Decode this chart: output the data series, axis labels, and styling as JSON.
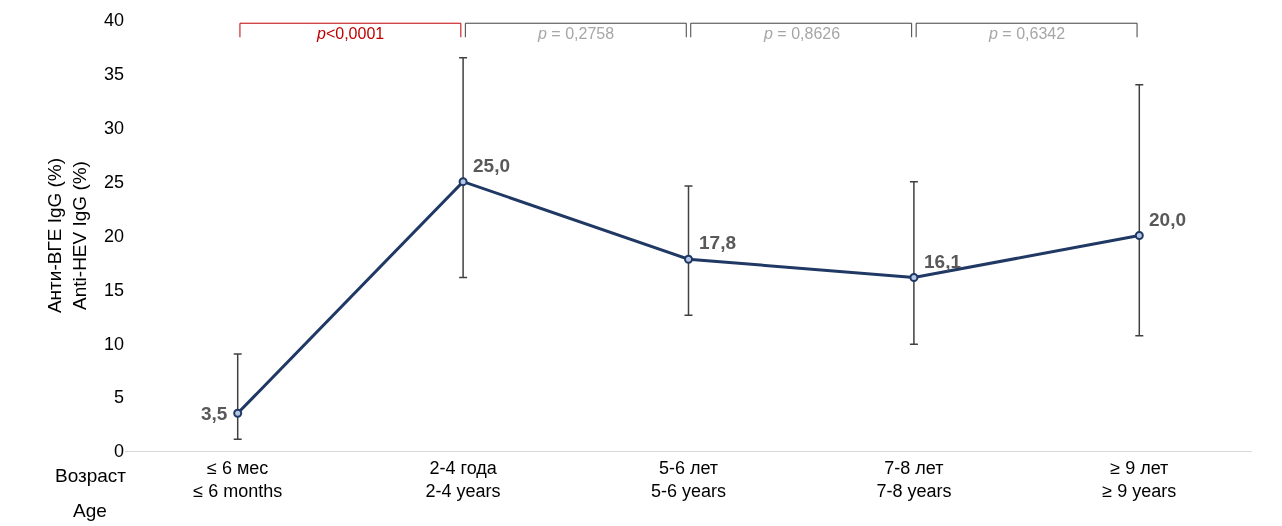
{
  "chart_data": {
    "type": "line",
    "ylabel": "Анти-ВГЕ IgG (%)\nAnti-HEV IgG (%)",
    "categories": [
      "≤ 6 мес\n≤ 6 months",
      "2-4 года\n2-4 years",
      "5-6 лет\n5-6 years",
      "7-8 лет\n7-8 years",
      "≥ 9 лет\n≥ 9 years"
    ],
    "series": [
      {
        "color": "#203864",
        "values": [
          3.5,
          25.0,
          17.8,
          16.1,
          20.0
        ],
        "errors": [
          [
            1.1,
            9.0
          ],
          [
            16.1,
            36.5
          ],
          [
            12.6,
            24.6
          ],
          [
            9.9,
            25.0
          ],
          [
            10.7,
            34.0
          ]
        ],
        "value_labels": [
          "3,5",
          "25,0",
          "17,8",
          "16,1",
          "20,0"
        ]
      }
    ],
    "ylim": [
      0,
      40
    ],
    "yticks": [
      0,
      5,
      10,
      15,
      20,
      25,
      30,
      35,
      40
    ],
    "annotations": [
      "p<0,0001",
      "p = 0,2758",
      "p = 0,8626",
      "p = 0,6342",
      "Возраст",
      "Age"
    ],
    "marker": "circle",
    "line_style": "solid"
  }
}
